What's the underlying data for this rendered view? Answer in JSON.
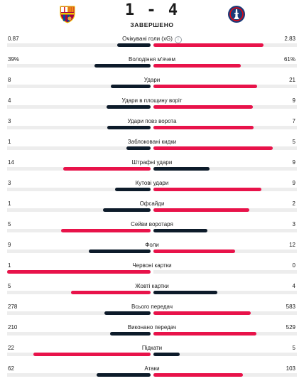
{
  "match": {
    "score": "1 - 4",
    "status": "ЗАВЕРШЕНО",
    "home_logo": "barcelona-crest",
    "away_logo": "psg-crest"
  },
  "colors": {
    "leader": "#e8134a",
    "other": "#0d1b2a",
    "track": "#ededed"
  },
  "stats": [
    {
      "label": "Очікувані голи (xG)",
      "home": "0.87",
      "away": "2.83",
      "home_share": 0.235,
      "away_share": 0.765,
      "info": true
    },
    {
      "label": "Володіння м'ячем",
      "home": "39%",
      "away": "61%",
      "home_share": 0.39,
      "away_share": 0.61
    },
    {
      "label": "Удари",
      "home": "8",
      "away": "21",
      "home_share": 0.276,
      "away_share": 0.724
    },
    {
      "label": "Удари в площину воріт",
      "home": "4",
      "away": "9",
      "home_share": 0.308,
      "away_share": 0.692
    },
    {
      "label": "Удари повз ворота",
      "home": "3",
      "away": "7",
      "home_share": 0.3,
      "away_share": 0.7
    },
    {
      "label": "Заблоковані кидки",
      "home": "1",
      "away": "5",
      "home_share": 0.167,
      "away_share": 0.833
    },
    {
      "label": "Штрафні удари",
      "home": "14",
      "away": "9",
      "home_share": 0.609,
      "away_share": 0.391
    },
    {
      "label": "Кутові удари",
      "home": "3",
      "away": "9",
      "home_share": 0.25,
      "away_share": 0.75
    },
    {
      "label": "Офсайди",
      "home": "1",
      "away": "2",
      "home_share": 0.333,
      "away_share": 0.667
    },
    {
      "label": "Сейви воротаря",
      "home": "5",
      "away": "3",
      "home_share": 0.625,
      "away_share": 0.375
    },
    {
      "label": "Фоли",
      "home": "9",
      "away": "12",
      "home_share": 0.429,
      "away_share": 0.571
    },
    {
      "label": "Червоні картки",
      "home": "1",
      "away": "0",
      "home_share": 1.0,
      "away_share": 0.0
    },
    {
      "label": "Жовті картки",
      "home": "5",
      "away": "4",
      "home_share": 0.556,
      "away_share": 0.444
    },
    {
      "label": "Всього передач",
      "home": "278",
      "away": "583",
      "home_share": 0.323,
      "away_share": 0.677
    },
    {
      "label": "Виконано передач",
      "home": "210",
      "away": "529",
      "home_share": 0.284,
      "away_share": 0.716
    },
    {
      "label": "Підкати",
      "home": "22",
      "away": "5",
      "home_share": 0.815,
      "away_share": 0.185
    },
    {
      "label": "Атаки",
      "home": "62",
      "away": "103",
      "home_share": 0.376,
      "away_share": 0.624
    }
  ]
}
